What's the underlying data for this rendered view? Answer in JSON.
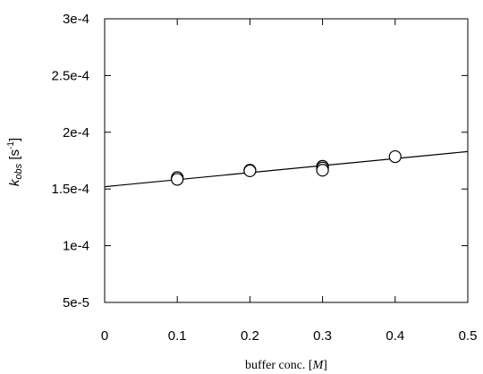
{
  "chart_data": {
    "type": "scatter",
    "title": "",
    "xlabel": {
      "prefix": "buffer conc. [",
      "symbol": "M",
      "suffix": "]"
    },
    "ylabel": {
      "symbol": "k",
      "subscript": "obs",
      "unit": " [s",
      "unit_sup": "-1",
      "unit_close": "]"
    },
    "xlim": [
      0,
      0.5
    ],
    "ylim": [
      5e-05,
      0.0003
    ],
    "x_ticks": [
      0,
      0.1,
      0.2,
      0.3,
      0.4,
      0.5
    ],
    "x_tick_labels": [
      "0",
      "0.1",
      "0.2",
      "0.3",
      "0.4",
      "0.5"
    ],
    "y_ticks": [
      5e-05,
      0.0001,
      0.00015,
      0.0002,
      0.00025,
      0.0003
    ],
    "y_tick_labels": [
      "5e-5",
      "1e-4",
      "1.5e-4",
      "2e-4",
      "2.5e-4",
      "3e-4"
    ],
    "grid": false,
    "series": [
      {
        "marker": "open-circle",
        "points": [
          {
            "x": 0.1,
            "y": 0.00016
          },
          {
            "x": 0.1,
            "y": 0.0001585
          },
          {
            "x": 0.2,
            "y": 0.0001665
          },
          {
            "x": 0.2,
            "y": 0.000166
          },
          {
            "x": 0.3,
            "y": 0.00017
          },
          {
            "x": 0.3,
            "y": 0.0001685
          },
          {
            "x": 0.3,
            "y": 0.0001665
          },
          {
            "x": 0.4,
            "y": 0.0001785
          }
        ]
      }
    ],
    "fit_line": {
      "x": [
        0,
        0.5
      ],
      "y": [
        0.000152,
        0.000183
      ]
    }
  }
}
